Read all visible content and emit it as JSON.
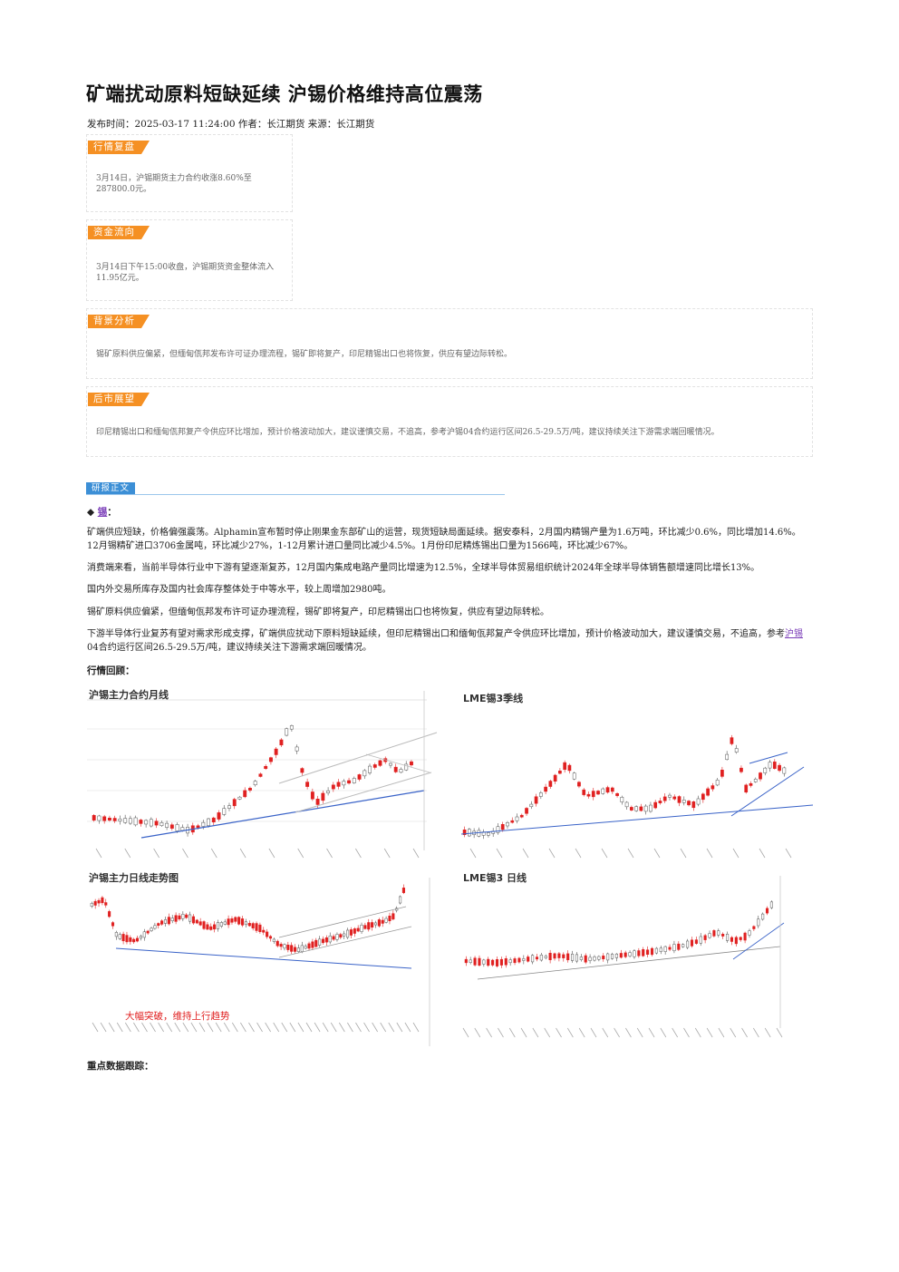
{
  "title": "矿端扰动原料短缺延续 沪锡价格维持高位震荡",
  "meta": "发布时间：2025-03-17 11:24:00 作者：长江期货 来源：长江期货",
  "cards": {
    "market_review": {
      "tag": "行情复盘",
      "text": "3月14日，沪锡期货主力合约收涨8.60%至287800.0元。"
    },
    "fund_flow": {
      "tag": "资金流向",
      "text": "3月14日下午15:00收盘，沪锡期货资金整体流入11.95亿元。"
    },
    "background": {
      "tag": "背景分析",
      "text": "锡矿原料供应偏紧，但缅甸佤邦发布许可证办理流程，锡矿即将复产，印尼精锡出口也将恢复，供应有望边际转松。"
    },
    "outlook": {
      "tag": "后市展望",
      "text": "印尼精锡出口和缅甸佤邦复产令供应环比增加，预计价格波动加大，建议谨慎交易，不追高，参考沪锡04合约运行区间26.5-29.5万/吨，建议持续关注下游需求端回暖情况。"
    }
  },
  "section": {
    "tag": "研报正文"
  },
  "bullet": {
    "symbol": "◆",
    "link": "锡",
    "colon": "："
  },
  "paragraphs": {
    "p1": "矿端供应短缺，价格偏强震荡。Alphamin宣布暂时停止刚果金东部矿山的运营，现货短缺局面延续。据安泰科，2月国内精锡产量为1.6万吨，环比减少0.6%，同比增加14.6%。12月锡精矿进口3706金属吨，环比减少27%，1-12月累计进口量同比减少4.5%。1月份印尼精炼锡出口量为1566吨，环比减少67%。",
    "p2": "消费端来看，当前半导体行业中下游有望逐渐复苏，12月国内集成电路产量同比增速为12.5%，全球半导体贸易组织统计2024年全球半导体销售额增速同比增长13%。",
    "p3": "国内外交易所库存及国内社会库存整体处于中等水平，较上周增加2980吨。",
    "p4": "锡矿原料供应偏紧，但缅甸佤邦发布许可证办理流程，锡矿即将复产，印尼精锡出口也将恢复，供应有望边际转松。",
    "p5_pre": "下游半导体行业复苏有望对需求形成支撑，矿端供应扰动下原料短缺延续，但印尼精锡出口和缅甸佤邦复产令供应环比增加，预计价格波动加大，建议谨慎交易，不追高，参考",
    "p5_link": "沪锡",
    "p5_post": "04合约运行区间26.5-29.5万/吨，建议持续关注下游需求端回暖情况。"
  },
  "market_review_head": "行情回顾：",
  "key_data_head": "重点数据跟踪：",
  "charts": {
    "c1": {
      "title": "沪锡主力合约月线"
    },
    "c2": {
      "title": "LME锡3季线"
    },
    "c3": {
      "title": "沪锡主力日线走势图",
      "annotation": "大幅突破，维持上行趋势"
    },
    "c4": {
      "title": "LME锡3 日线"
    }
  },
  "colors": {
    "accent_orange": "#f59023",
    "accent_blue": "#3c8fd6",
    "candle_up": "#e02020",
    "candle_down": "#888888",
    "trend_line": "#3a63c8"
  }
}
